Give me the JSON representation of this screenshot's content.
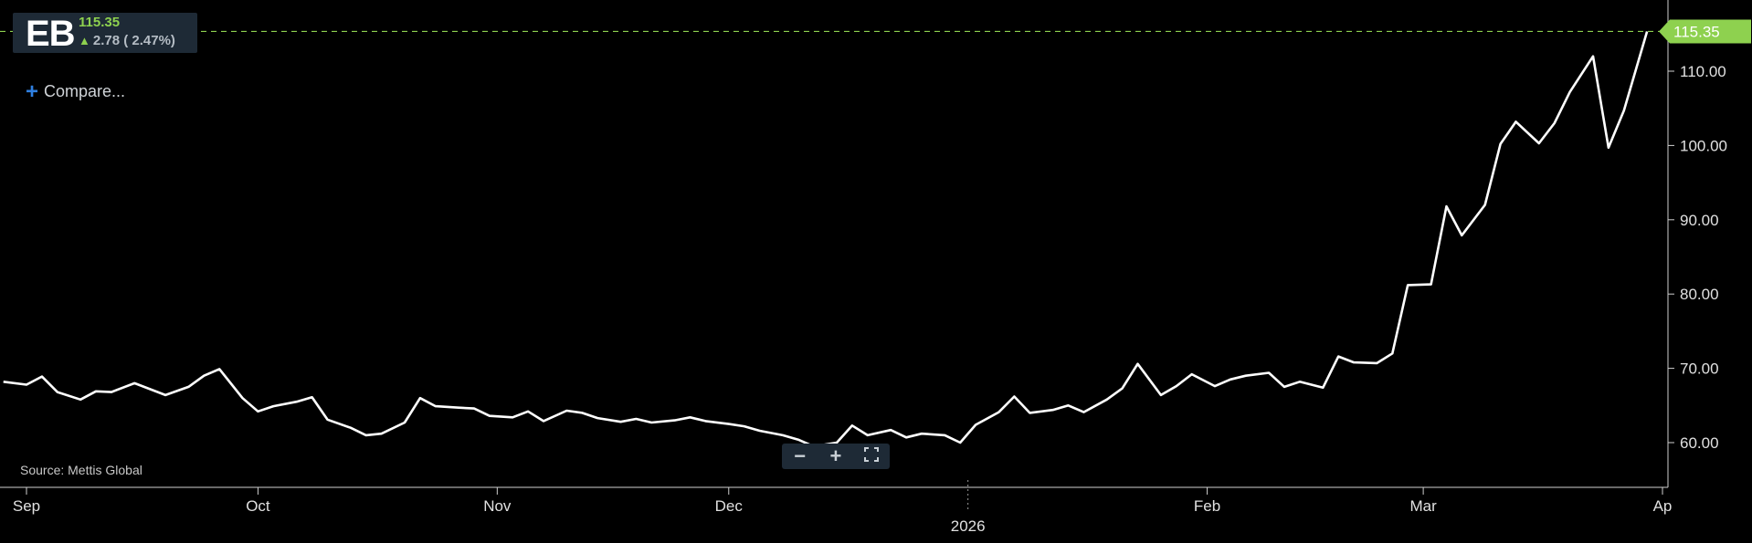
{
  "ticker": {
    "symbol": "EB",
    "price": "115.35",
    "change": "2.78 ( 2.47%)",
    "direction_icon": "arrow-up-icon"
  },
  "controls": {
    "compare_label": "Compare...",
    "zoom_out_icon": "minus-icon",
    "zoom_in_icon": "plus-icon",
    "fullscreen_icon": "fullscreen-icon"
  },
  "source_label": "Source: Mettis Global",
  "colors": {
    "background": "#000000",
    "line": "#ffffff",
    "up": "#8ed14f",
    "panel": "#1e2a36",
    "accent": "#2f7fe0"
  },
  "chart_data": {
    "type": "line",
    "title": "",
    "xlabel": "",
    "ylabel": "",
    "ylim": [
      55,
      117
    ],
    "y_ticks": [
      60,
      70,
      80,
      90,
      100,
      110
    ],
    "y_tick_labels": [
      "60.00",
      "70.00",
      "80.00",
      "90.00",
      "100.00",
      "110.00"
    ],
    "x_ticks": [
      {
        "date": "2025-09-01",
        "label": "Sep"
      },
      {
        "date": "2025-10-01",
        "label": "Oct"
      },
      {
        "date": "2025-11-01",
        "label": "Nov"
      },
      {
        "date": "2025-12-01",
        "label": "Dec"
      },
      {
        "date": "2026-01-01",
        "label": "2026",
        "year": true
      },
      {
        "date": "2026-02-01",
        "label": "Feb"
      },
      {
        "date": "2026-03-01",
        "label": "Mar"
      },
      {
        "date": "2026-04-01",
        "label": "Ap"
      }
    ],
    "last_value_label": "115.35",
    "last_value": 115.35,
    "grid": false,
    "series": [
      {
        "x": [
          "2025-08-29",
          "2025-09-01",
          "2025-09-03",
          "2025-09-05",
          "2025-09-08",
          "2025-09-10",
          "2025-09-12",
          "2025-09-15",
          "2025-09-17",
          "2025-09-19",
          "2025-09-22",
          "2025-09-24",
          "2025-09-26",
          "2025-09-29",
          "2025-10-01",
          "2025-10-03",
          "2025-10-06",
          "2025-10-08",
          "2025-10-10",
          "2025-10-13",
          "2025-10-15",
          "2025-10-17",
          "2025-10-20",
          "2025-10-22",
          "2025-10-24",
          "2025-10-27",
          "2025-10-29",
          "2025-10-31",
          "2025-11-03",
          "2025-11-05",
          "2025-11-07",
          "2025-11-10",
          "2025-11-12",
          "2025-11-14",
          "2025-11-17",
          "2025-11-19",
          "2025-11-21",
          "2025-11-24",
          "2025-11-26",
          "2025-11-28",
          "2025-12-01",
          "2025-12-03",
          "2025-12-05",
          "2025-12-08",
          "2025-12-10",
          "2025-12-12",
          "2025-12-15",
          "2025-12-17",
          "2025-12-19",
          "2025-12-22",
          "2025-12-24",
          "2025-12-26",
          "2025-12-29",
          "2025-12-31",
          "2026-01-02",
          "2026-01-05",
          "2026-01-07",
          "2026-01-09",
          "2026-01-12",
          "2026-01-14",
          "2026-01-16",
          "2026-01-19",
          "2026-01-21",
          "2026-01-23",
          "2026-01-26",
          "2026-01-28",
          "2026-01-30",
          "2026-02-02",
          "2026-02-04",
          "2026-02-06",
          "2026-02-09",
          "2026-02-11",
          "2026-02-13",
          "2026-02-16",
          "2026-02-18",
          "2026-02-20",
          "2026-02-23",
          "2026-02-25",
          "2026-02-27",
          "2026-03-02",
          "2026-03-04",
          "2026-03-06",
          "2026-03-09",
          "2026-03-11",
          "2026-03-13",
          "2026-03-16",
          "2026-03-18",
          "2026-03-20",
          "2026-03-23",
          "2026-03-25",
          "2026-03-27",
          "2026-03-30"
        ],
        "y": [
          68.2,
          67.8,
          68.9,
          66.8,
          65.8,
          66.9,
          66.8,
          68.0,
          67.2,
          66.4,
          67.5,
          69.0,
          69.9,
          66.0,
          64.2,
          64.9,
          65.5,
          66.1,
          63.1,
          62.0,
          61.0,
          61.2,
          62.7,
          66.0,
          64.9,
          64.7,
          64.6,
          63.6,
          63.4,
          64.2,
          62.9,
          64.3,
          64.0,
          63.3,
          62.8,
          63.2,
          62.7,
          63.0,
          63.4,
          62.9,
          62.5,
          62.2,
          61.6,
          61.0,
          60.4,
          59.5,
          60.0,
          62.3,
          61.0,
          61.7,
          60.7,
          61.2,
          61.0,
          60.0,
          62.4,
          64.1,
          66.2,
          64.0,
          64.4,
          65.0,
          64.1,
          65.8,
          67.3,
          70.6,
          66.4,
          67.6,
          69.2,
          67.6,
          68.5,
          69.0,
          69.4,
          67.5,
          68.2,
          67.4,
          71.6,
          70.8,
          70.7,
          72.0,
          81.2,
          81.3,
          91.8,
          87.9,
          92.0,
          100.2,
          103.2,
          100.3,
          103.0,
          107.2,
          112.0,
          99.7,
          104.7,
          115.35
        ]
      }
    ]
  }
}
